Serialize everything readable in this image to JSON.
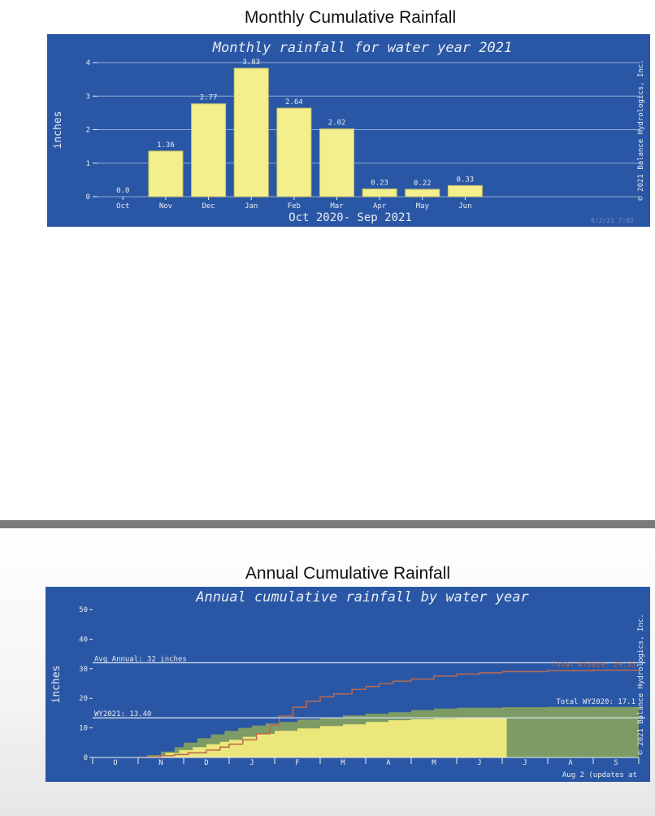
{
  "colors": {
    "plot_bg": "#2a57a5",
    "bar_fill": "#f2ef8c",
    "bar_stroke": "#c9c46a",
    "text": "#e8ecf4",
    "gridline": "#8fa7d4",
    "wy2021_fill": "#ece77a",
    "wy2020_fill": "#7d9b64",
    "wy2019_line": "#b86a4f"
  },
  "page": {
    "monthly_heading": "Monthly Cumulative Rainfall",
    "annual_heading": "Annual Cumulative Rainfall"
  },
  "chart_data": [
    {
      "type": "bar",
      "title": "Monthly rainfall for water year 2021",
      "xlabel": "Oct 2020- Sep 2021",
      "ylabel": "inches",
      "ylim": [
        0,
        4
      ],
      "yticks": [
        0,
        1,
        2,
        3,
        4
      ],
      "categories": [
        "Oct",
        "Nov",
        "Dec",
        "Jan",
        "Feb",
        "Mar",
        "Apr",
        "May",
        "Jun"
      ],
      "values": [
        0.0,
        1.36,
        2.77,
        3.83,
        2.64,
        2.02,
        0.23,
        0.22,
        0.33
      ],
      "value_labels": [
        "0.0",
        "1.36",
        "2.77",
        "3.83",
        "2.64",
        "2.02",
        "0.23",
        "0.22",
        "0.33"
      ],
      "grid": "horizontal",
      "copyright": "© 2021 Balance Hydrologics, Inc.",
      "timestamp": "8/2/21 7:02"
    },
    {
      "type": "area",
      "title": "Annual cumulative rainfall by water year",
      "ylabel": "inches",
      "ylim": [
        0,
        50
      ],
      "yticks": [
        0,
        10,
        20,
        30,
        40,
        50
      ],
      "months": [
        "O",
        "N",
        "D",
        "J",
        "F",
        "M",
        "A",
        "M",
        "J",
        "J",
        "A",
        "S"
      ],
      "reference_lines": [
        {
          "label": "Avg Annual: 32 inches",
          "value": 32
        },
        {
          "label": "WY2021: 13.40",
          "value": 13.4
        }
      ],
      "series": [
        {
          "name": "WY2019",
          "label": "Total WY2019: 29.55",
          "style": "line",
          "x": [
            1.0,
            1.2,
            1.5,
            1.8,
            2.1,
            2.5,
            2.8,
            3.0,
            3.3,
            3.6,
            3.9,
            4.1,
            4.4,
            4.7,
            5.0,
            5.3,
            5.7,
            6.0,
            6.3,
            6.6,
            7.0,
            7.5,
            8.0,
            8.5,
            9.0,
            10.0,
            11.0,
            12.0
          ],
          "y": [
            0,
            0.3,
            0.6,
            1.0,
            1.6,
            2.5,
            3.5,
            4.5,
            6.0,
            8.0,
            11.0,
            14.0,
            17.0,
            19.0,
            20.5,
            21.5,
            23.0,
            24.0,
            25.0,
            25.8,
            26.5,
            27.5,
            28.2,
            28.6,
            29.0,
            29.3,
            29.5,
            29.55
          ]
        },
        {
          "name": "WY2020",
          "label": "Total WY2020: 17.1",
          "style": "area",
          "x": [
            1.0,
            1.2,
            1.5,
            1.8,
            2.0,
            2.3,
            2.6,
            2.9,
            3.2,
            3.5,
            3.8,
            4.1,
            4.5,
            5.0,
            5.5,
            6.0,
            6.5,
            7.0,
            7.5,
            8.0,
            9.0,
            10.0,
            11.0,
            12.0
          ],
          "y": [
            0,
            0.8,
            2.0,
            3.5,
            5.0,
            6.5,
            7.8,
            9.0,
            10.0,
            10.8,
            11.5,
            12.0,
            12.8,
            13.5,
            14.2,
            14.8,
            15.3,
            16.0,
            16.5,
            16.8,
            17.0,
            17.1,
            17.1,
            17.1
          ]
        },
        {
          "name": "WY2021",
          "style": "area",
          "x": [
            1.0,
            1.3,
            1.6,
            1.9,
            2.2,
            2.5,
            2.8,
            3.0,
            3.3,
            3.6,
            4.0,
            4.5,
            5.0,
            5.5,
            6.0,
            6.5,
            7.0,
            7.5,
            8.0,
            8.5,
            9.0,
            9.1
          ],
          "y": [
            0,
            0.5,
            1.5,
            2.5,
            3.5,
            4.5,
            5.3,
            6.0,
            7.0,
            8.0,
            9.0,
            9.8,
            10.6,
            11.2,
            12.0,
            12.6,
            12.9,
            13.1,
            13.3,
            13.35,
            13.4,
            13.4
          ]
        }
      ],
      "copyright": "© 2021 Balance Hydrologics, Inc.",
      "footer_note": "Aug 2 (updates at"
    }
  ]
}
